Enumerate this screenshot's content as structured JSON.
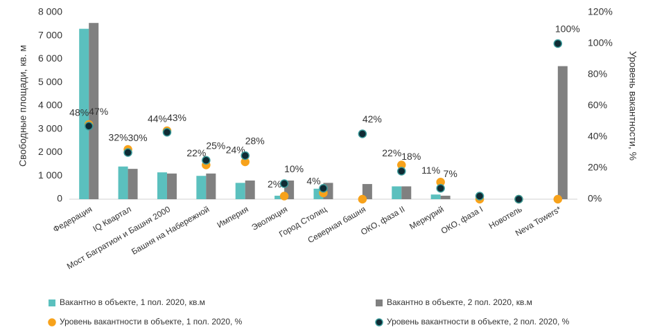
{
  "chart_data": {
    "type": "bar_scatter",
    "ylabel": "Свободные площади, кв. м",
    "y2label": "Уровень вакантности, %",
    "categories": [
      "Федерация",
      "IQ Квартал",
      "Мост Багратион и Башня 2000",
      "Башня на Набережной",
      "Империя",
      "Эволюция",
      "Город Столиц",
      "Северная башня",
      "ОКО, фаза II",
      "Меркурий",
      "ОКО, фаза I",
      "Новотель",
      "Neva Towers*"
    ],
    "series": [
      {
        "name": "Вакантно в объекте, 1 пол. 2020, кв.м",
        "color": "#5bc0be",
        "kind": "bar",
        "values": [
          7300,
          1400,
          1150,
          1000,
          700,
          150,
          450,
          0,
          550,
          200,
          0,
          0,
          0
        ]
      },
      {
        "name": "Вакантно в объекте, 2 пол. 2020, кв.м",
        "color": "#808080",
        "kind": "bar",
        "values": [
          7550,
          1300,
          1100,
          1100,
          800,
          800,
          700,
          650,
          550,
          150,
          0,
          0,
          5700
        ]
      },
      {
        "name": "Уровень вакантности в объекте, 1 пол. 2020, %",
        "color": "#f7a21b",
        "kind": "scatter",
        "axis": "y2",
        "values": [
          48,
          32,
          44,
          22,
          24,
          2,
          4,
          0,
          22,
          11,
          0,
          0,
          0
        ],
        "value_labels": [
          "48%",
          "32%",
          "44%",
          "22%",
          "24%",
          "2%",
          "4%",
          null,
          "22%",
          "11%",
          null,
          null,
          null
        ]
      },
      {
        "name": "Уровень вакантности в объекте, 2 пол. 2020, %",
        "color": "#0f2b34",
        "kind": "scatter",
        "axis": "y2",
        "values": [
          47,
          30,
          43,
          25,
          28,
          10,
          7,
          42,
          18,
          7,
          2,
          0,
          100
        ],
        "value_labels": [
          "47%",
          "30%",
          "43%",
          "25%",
          "28%",
          "10%",
          null,
          "42%",
          "18%",
          "7%",
          null,
          null,
          "100%"
        ]
      }
    ],
    "ylim": [
      0,
      8000
    ],
    "yticks": [
      0,
      {
        "value": 1000,
        "label": "1 000"
      },
      {
        "value": 2000,
        "label": "2 000"
      },
      {
        "value": 3000,
        "label": "3 000"
      },
      {
        "value": 4000,
        "label": "4 000"
      },
      {
        "value": 5000,
        "label": "5 000"
      },
      {
        "value": 6000,
        "label": "6 000"
      },
      {
        "value": 7000,
        "label": "7 000"
      },
      {
        "value": 8000,
        "label": "8 000"
      }
    ],
    "y2lim": [
      0,
      120
    ],
    "y2ticks": [
      {
        "value": 0,
        "label": "0%"
      },
      {
        "value": 20,
        "label": "20%"
      },
      {
        "value": 40,
        "label": "40%"
      },
      {
        "value": 60,
        "label": "60%"
      },
      {
        "value": 80,
        "label": "80%"
      },
      {
        "value": 100,
        "label": "100%"
      },
      {
        "value": 120,
        "label": "120%"
      }
    ],
    "grid": false
  }
}
